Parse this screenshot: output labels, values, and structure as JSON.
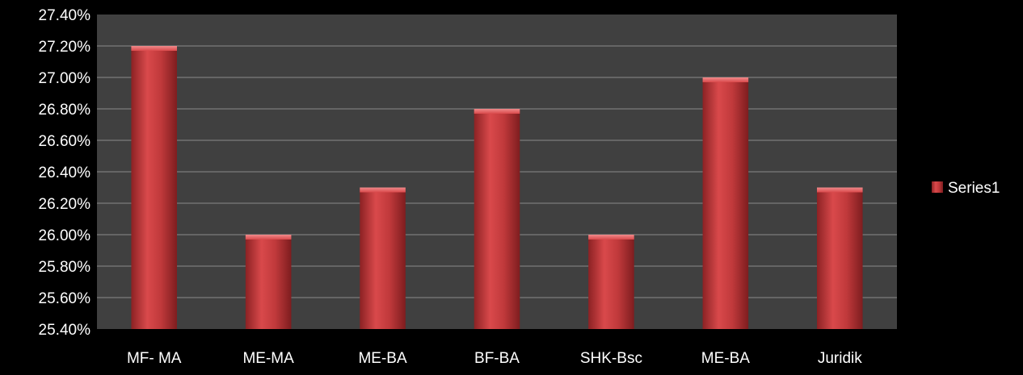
{
  "chart_data": {
    "type": "bar",
    "categories": [
      "MF- MA",
      "ME-MA",
      "ME-BA",
      "BF-BA",
      "SHK-Bsc",
      "ME-BA",
      "Juridik"
    ],
    "series": [
      {
        "name": "Series1",
        "values": [
          27.2,
          26.0,
          26.3,
          26.8,
          26.0,
          27.0,
          26.3
        ],
        "color": "#c0393b"
      }
    ],
    "yticks": [
      "25.40%",
      "25.60%",
      "25.80%",
      "26.00%",
      "26.20%",
      "26.40%",
      "26.60%",
      "26.80%",
      "27.00%",
      "27.20%",
      "27.40%"
    ],
    "ylim": [
      25.4,
      27.4
    ],
    "grid": true,
    "legend_position": "right",
    "colors": {
      "background": "#000000",
      "plot_area": "#404040",
      "gridline": "#8a8a8a",
      "bar": "#c0393b",
      "bar_highlight": "#e06466",
      "bar_shadow": "#7e1d1f",
      "text": "#ffffff"
    }
  }
}
